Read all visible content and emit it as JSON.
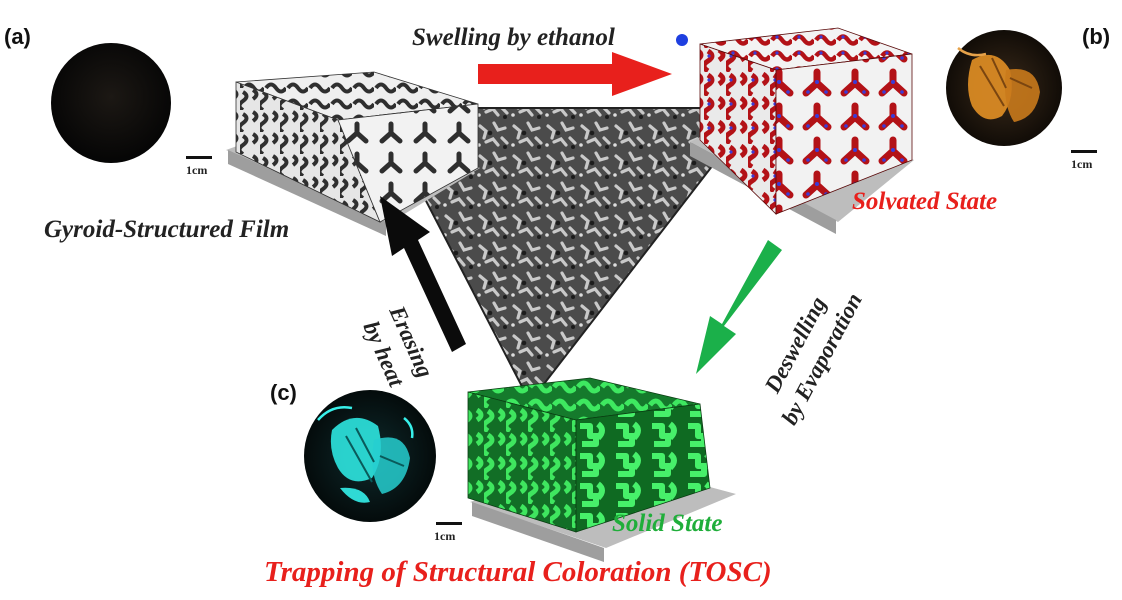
{
  "panel_labels": {
    "a": "(a)",
    "b": "(b)",
    "c": "(c)"
  },
  "captions": {
    "top_arrow": "Swelling by ethanol",
    "film": "Gyroid-Structured Film",
    "solvated": "Solvated State",
    "solid": "Solid State",
    "title": "Trapping of  Structural Coloration (TOSC)",
    "erasing_line1": "Erasing",
    "erasing_line2": "by heat",
    "deswelling_line1": "Deswelling",
    "deswelling_line2": "by Evaporation"
  },
  "scale_label": "1cm",
  "colors": {
    "swelling_arrow": "#e8201c",
    "erasing_arrow": "#0b0b0b",
    "deswelling_arrow": "#1bb04a",
    "ethanol_dot": "#1e3fe0",
    "solvated_text": "#e8201c",
    "solid_text": "#1fae3a",
    "title_text": "#e8201c"
  }
}
